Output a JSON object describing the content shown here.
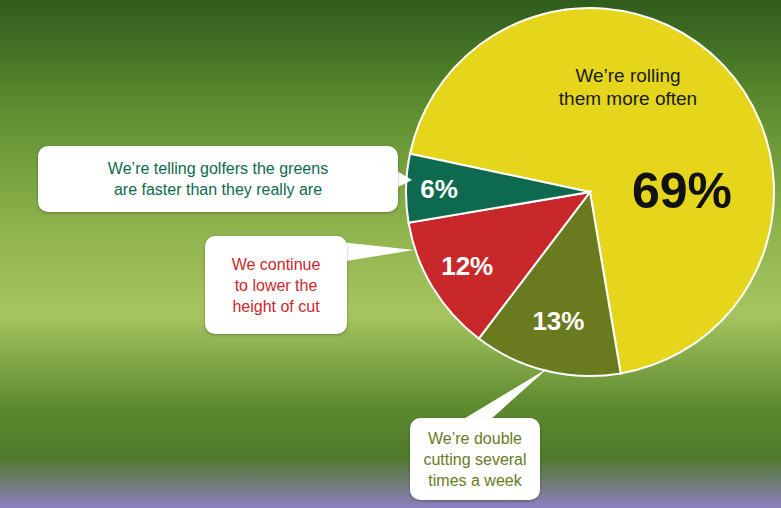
{
  "chart_data": {
    "type": "pie",
    "categories": [
      "We’re rolling them more often",
      "We’re double cutting several times a week",
      "We continue to lower the height of cut",
      "We’re telling golfers the greens are faster than they really are"
    ],
    "values": [
      69,
      13,
      12,
      6
    ],
    "value_labels": [
      "69%",
      "13%",
      "12%",
      "6%"
    ],
    "colors": [
      "#e5d61c",
      "#6a7a1f",
      "#c9282b",
      "#0e6a4e"
    ],
    "data_labels": true
  }
}
